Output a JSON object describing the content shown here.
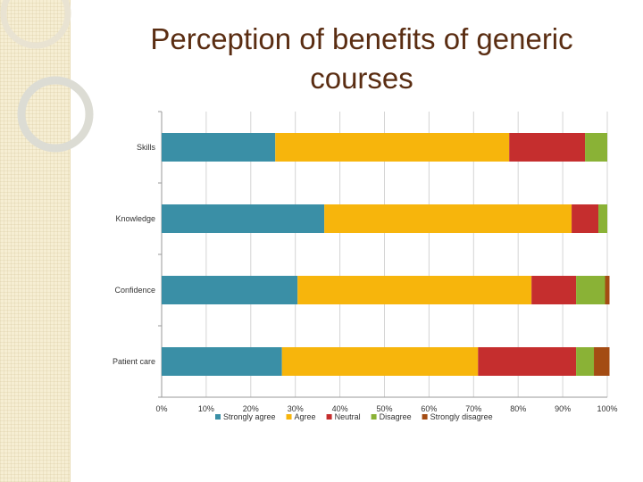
{
  "slide": {
    "title_line1": "Perception of benefits of generic",
    "title_line2": "courses"
  },
  "chart_data": {
    "type": "bar",
    "orientation": "horizontal",
    "stacked": "100%",
    "categories": [
      "Skills",
      "Knowledge",
      "Confidence",
      "Patient care"
    ],
    "series": [
      {
        "name": "Strongly agree",
        "color": "#3a8fa6",
        "values": [
          25.5,
          36.5,
          30.5,
          27
        ]
      },
      {
        "name": "Agree",
        "color": "#f7b50c",
        "values": [
          52.5,
          55.5,
          52.5,
          44
        ]
      },
      {
        "name": "Neutral",
        "color": "#c52e2e",
        "values": [
          17,
          6,
          10,
          22
        ]
      },
      {
        "name": "Disagree",
        "color": "#8ab236",
        "values": [
          5,
          2,
          6.5,
          4
        ]
      },
      {
        "name": "Strongly disagree",
        "color": "#a44c13",
        "values": [
          0,
          0,
          1,
          3.5
        ]
      }
    ],
    "xlim": [
      0,
      100
    ],
    "x_ticks": [
      "0%",
      "10%",
      "20%",
      "30%",
      "40%",
      "50%",
      "60%",
      "70%",
      "80%",
      "90%",
      "100%"
    ],
    "grid": "vertical",
    "legend_position": "bottom"
  }
}
